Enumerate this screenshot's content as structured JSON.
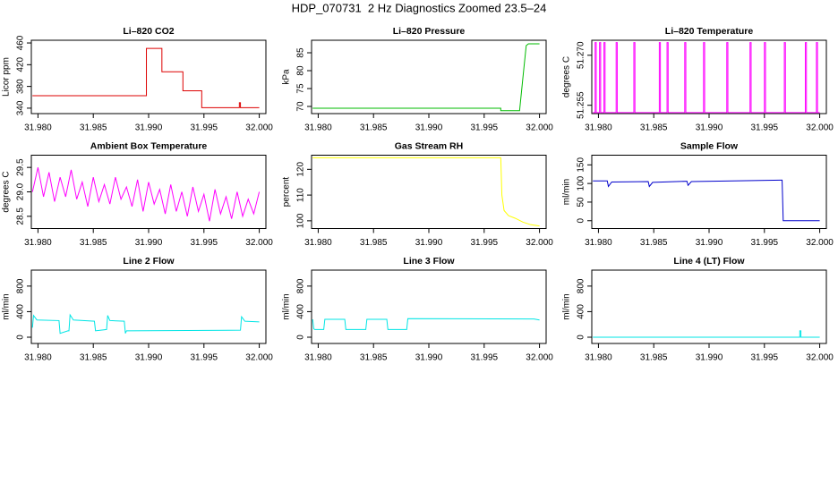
{
  "title": "HDP_070731  2 Hz Diagnostics Zoomed 23.5–24",
  "chart_data": [
    {
      "type": "line",
      "title": "Li–820 CO2",
      "ylabel": "Licor ppm",
      "color": "#dd0000",
      "x": [
        31.9795,
        31.9898,
        31.9898,
        31.9912,
        31.9912,
        31.9931,
        31.9931,
        31.9948,
        31.9948,
        31.9982,
        31.9982,
        31.9983,
        31.9983,
        32.0
      ],
      "values": [
        363,
        363,
        450,
        450,
        407,
        407,
        372,
        372,
        341,
        341,
        350,
        350,
        341,
        341
      ],
      "xlim": [
        31.9794,
        32.0006
      ],
      "xticks": [
        {
          "value": 31.98,
          "label": "31.980"
        },
        31.985,
        {
          "value": 31.99,
          "label": "31.990"
        },
        31.995,
        {
          "value": 32.0,
          "label": "32.000"
        }
      ],
      "ylim": [
        330,
        465
      ],
      "yticks": [
        340,
        380,
        420,
        460
      ]
    },
    {
      "type": "line",
      "title": "Li–820 Pressure",
      "ylabel": "kPa",
      "color": "#00bb00",
      "x": [
        31.9795,
        31.9965,
        31.9965,
        31.9982,
        31.9985,
        31.9988,
        31.999,
        32.0
      ],
      "values": [
        69.5,
        69.5,
        68.8,
        68.8,
        78,
        87,
        87.5,
        87.5
      ],
      "xlim": [
        31.9794,
        32.0006
      ],
      "xticks": [
        {
          "value": 31.98,
          "label": "31.980"
        },
        31.985,
        {
          "value": 31.99,
          "label": "31.990"
        },
        31.995,
        {
          "value": 32.0,
          "label": "32.000"
        }
      ],
      "ylim": [
        68,
        88.5
      ],
      "yticks": [
        70,
        75,
        80,
        85
      ]
    },
    {
      "type": "line",
      "title": "Li–820 Temperature",
      "ylabel": "degrees C",
      "color": "#ff00ff",
      "x": [
        31.9795,
        31.9797,
        31.9797,
        31.9798,
        31.9798,
        31.9801,
        31.9801,
        31.9802,
        31.9802,
        31.9805,
        31.9805,
        31.9806,
        31.9806,
        31.9816,
        31.9816,
        31.9817,
        31.9817,
        31.9832,
        31.9832,
        31.9833,
        31.9833,
        31.9855,
        31.9855,
        31.9856,
        31.9856,
        31.9862,
        31.9862,
        31.9863,
        31.9863,
        31.9878,
        31.9878,
        31.9879,
        31.9879,
        31.9895,
        31.9895,
        31.9896,
        31.9896,
        31.9916,
        31.9916,
        31.9917,
        31.9917,
        31.9937,
        31.9937,
        31.9938,
        31.9938,
        31.995,
        31.995,
        31.9951,
        31.9951,
        31.9968,
        31.9968,
        31.9969,
        31.9969,
        31.9987,
        31.9987,
        31.9988,
        31.9988,
        31.9997,
        31.9997,
        31.9998,
        31.9998,
        32.0
      ],
      "values": [
        51.2528,
        51.2528,
        51.2738,
        51.2738,
        51.2528,
        51.2528,
        51.2738,
        51.2738,
        51.2528,
        51.2528,
        51.2738,
        51.2738,
        51.2528,
        51.2528,
        51.2738,
        51.2738,
        51.2528,
        51.2528,
        51.2738,
        51.2738,
        51.2528,
        51.2528,
        51.2738,
        51.2738,
        51.2528,
        51.2528,
        51.2738,
        51.2738,
        51.2528,
        51.2528,
        51.2738,
        51.2738,
        51.2528,
        51.2528,
        51.2738,
        51.2738,
        51.2528,
        51.2528,
        51.2738,
        51.2738,
        51.2528,
        51.2528,
        51.2738,
        51.2738,
        51.2528,
        51.2528,
        51.2738,
        51.2738,
        51.2528,
        51.2528,
        51.2738,
        51.2738,
        51.2528,
        51.2528,
        51.2738,
        51.2738,
        51.2528,
        51.2528,
        51.2738,
        51.2738,
        51.2528,
        51.2528
      ],
      "xlim": [
        31.9794,
        32.0006
      ],
      "xticks": [
        {
          "value": 31.98,
          "label": "31.980"
        },
        31.985,
        {
          "value": 31.99,
          "label": "31.990"
        },
        31.995,
        {
          "value": 32.0,
          "label": "32.000"
        }
      ],
      "ylim": [
        51.2525,
        51.2745
      ],
      "yticks": [
        {
          "value": 51.255,
          "label": "51.255"
        },
        {
          "value": 51.27,
          "label": "51.270"
        }
      ]
    },
    {
      "type": "line",
      "title": "Ambient Box Temperature",
      "ylabel": "degrees C",
      "color": "#ff00ff",
      "x": [
        31.9795,
        31.98,
        31.9805,
        31.981,
        31.9815,
        31.982,
        31.9825,
        31.983,
        31.9835,
        31.984,
        31.9845,
        31.985,
        31.9855,
        31.986,
        31.9865,
        31.987,
        31.9875,
        31.988,
        31.9885,
        31.989,
        31.9895,
        31.99,
        31.9905,
        31.991,
        31.9915,
        31.992,
        31.9925,
        31.993,
        31.9935,
        31.994,
        31.9945,
        31.995,
        31.9955,
        31.996,
        31.9965,
        31.997,
        31.9975,
        31.998,
        31.9985,
        31.999,
        31.9995,
        32.0
      ],
      "values": [
        29.0,
        29.5,
        28.9,
        29.4,
        28.8,
        29.3,
        28.9,
        29.45,
        28.85,
        29.2,
        28.7,
        29.3,
        28.8,
        29.15,
        28.75,
        29.3,
        28.85,
        29.1,
        28.7,
        29.25,
        28.6,
        29.2,
        28.75,
        29.05,
        28.55,
        29.15,
        28.6,
        29.0,
        28.5,
        29.1,
        28.6,
        28.95,
        28.4,
        29.05,
        28.55,
        28.9,
        28.45,
        29.0,
        28.5,
        28.85,
        28.55,
        29.0
      ],
      "xlim": [
        31.9794,
        32.0006
      ],
      "xticks": [
        {
          "value": 31.98,
          "label": "31.980"
        },
        31.985,
        {
          "value": 31.99,
          "label": "31.990"
        },
        31.995,
        {
          "value": 32.0,
          "label": "32.000"
        }
      ],
      "ylim": [
        28.25,
        29.75
      ],
      "yticks": [
        28.5,
        {
          "value": 29.0,
          "label": "29.0"
        },
        29.5
      ]
    },
    {
      "type": "line",
      "title": "Gas Stream RH",
      "ylabel": "percent",
      "color": "#ffff00",
      "x": [
        31.9795,
        31.9965,
        31.9966,
        31.9968,
        31.9972,
        31.9978,
        31.9985,
        31.9992,
        32.0
      ],
      "values": [
        124.5,
        124.5,
        110,
        104,
        102,
        101,
        99.5,
        98.5,
        98
      ],
      "xlim": [
        31.9794,
        32.0006
      ],
      "xticks": [
        {
          "value": 31.98,
          "label": "31.980"
        },
        31.985,
        {
          "value": 31.99,
          "label": "31.990"
        },
        31.995,
        {
          "value": 32.0,
          "label": "32.000"
        }
      ],
      "ylim": [
        97,
        125.5
      ],
      "yticks": [
        100,
        110,
        120
      ]
    },
    {
      "type": "line",
      "title": "Sample Flow",
      "ylabel": "ml/min",
      "color": "#0000cc",
      "x": [
        31.9795,
        31.9808,
        31.9809,
        31.9812,
        31.9845,
        31.9846,
        31.9849,
        31.988,
        31.9881,
        31.9884,
        31.9965,
        31.9966,
        31.9967,
        32.0
      ],
      "values": [
        107,
        107,
        92,
        104,
        105,
        92,
        103,
        106,
        95,
        105,
        109,
        109,
        0,
        0
      ],
      "xlim": [
        31.9794,
        32.0006
      ],
      "xticks": [
        {
          "value": 31.98,
          "label": "31.980"
        },
        31.985,
        {
          "value": 31.99,
          "label": "31.990"
        },
        31.995,
        {
          "value": 32.0,
          "label": "32.000"
        }
      ],
      "ylim": [
        -21,
        176
      ],
      "yticks": [
        0,
        50,
        100,
        150
      ]
    },
    {
      "type": "line",
      "title": "Line 2 Flow",
      "ylabel": "ml/min",
      "color": "#00e5e5",
      "x": [
        31.9795,
        31.9796,
        31.9799,
        31.9819,
        31.982,
        31.9827,
        31.9828,
        31.9829,
        31.9832,
        31.9851,
        31.9852,
        31.9862,
        31.9863,
        31.9865,
        31.9878,
        31.9879,
        31.988,
        31.9983,
        31.9984,
        31.9987,
        32.0
      ],
      "values": [
        150,
        340,
        270,
        260,
        60,
        100,
        100,
        350,
        270,
        250,
        100,
        120,
        340,
        260,
        250,
        60,
        100,
        110,
        320,
        250,
        240
      ],
      "xlim": [
        31.9794,
        32.0006
      ],
      "xticks": [
        {
          "value": 31.98,
          "label": "31.980"
        },
        31.985,
        {
          "value": 31.99,
          "label": "31.990"
        },
        31.995,
        {
          "value": 32.0,
          "label": "32.000"
        }
      ],
      "ylim": [
        -98,
        1050
      ],
      "yticks": [
        0,
        400,
        800
      ]
    },
    {
      "type": "line",
      "title": "Line 3 Flow",
      "ylabel": "ml/min",
      "color": "#00e5e5",
      "x": [
        31.9795,
        31.9796,
        31.9797,
        31.9805,
        31.9806,
        31.9824,
        31.9825,
        31.9843,
        31.9844,
        31.9862,
        31.9863,
        31.988,
        31.9881,
        31.9995,
        32.0
      ],
      "values": [
        280,
        130,
        120,
        120,
        280,
        280,
        120,
        120,
        280,
        280,
        120,
        120,
        290,
        285,
        270
      ],
      "xlim": [
        31.9794,
        32.0006
      ],
      "xticks": [
        {
          "value": 31.98,
          "label": "31.980"
        },
        31.985,
        {
          "value": 31.99,
          "label": "31.990"
        },
        31.995,
        {
          "value": 32.0,
          "label": "32.000"
        }
      ],
      "ylim": [
        -98,
        1050
      ],
      "yticks": [
        0,
        400,
        800
      ]
    },
    {
      "type": "line",
      "title": "Line 4 (LT) Flow",
      "ylabel": "ml/min",
      "color": "#00e5e5",
      "x": [
        31.9795,
        31.9982,
        31.9982,
        31.9983,
        31.9983,
        32.0
      ],
      "values": [
        0,
        0,
        100,
        100,
        0,
        0
      ],
      "xlim": [
        31.9794,
        32.0006
      ],
      "xticks": [
        {
          "value": 31.98,
          "label": "31.980"
        },
        31.985,
        {
          "value": 31.99,
          "label": "31.990"
        },
        31.995,
        {
          "value": 32.0,
          "label": "32.000"
        }
      ],
      "ylim": [
        -98,
        1050
      ],
      "yticks": [
        0,
        400,
        800
      ]
    }
  ]
}
